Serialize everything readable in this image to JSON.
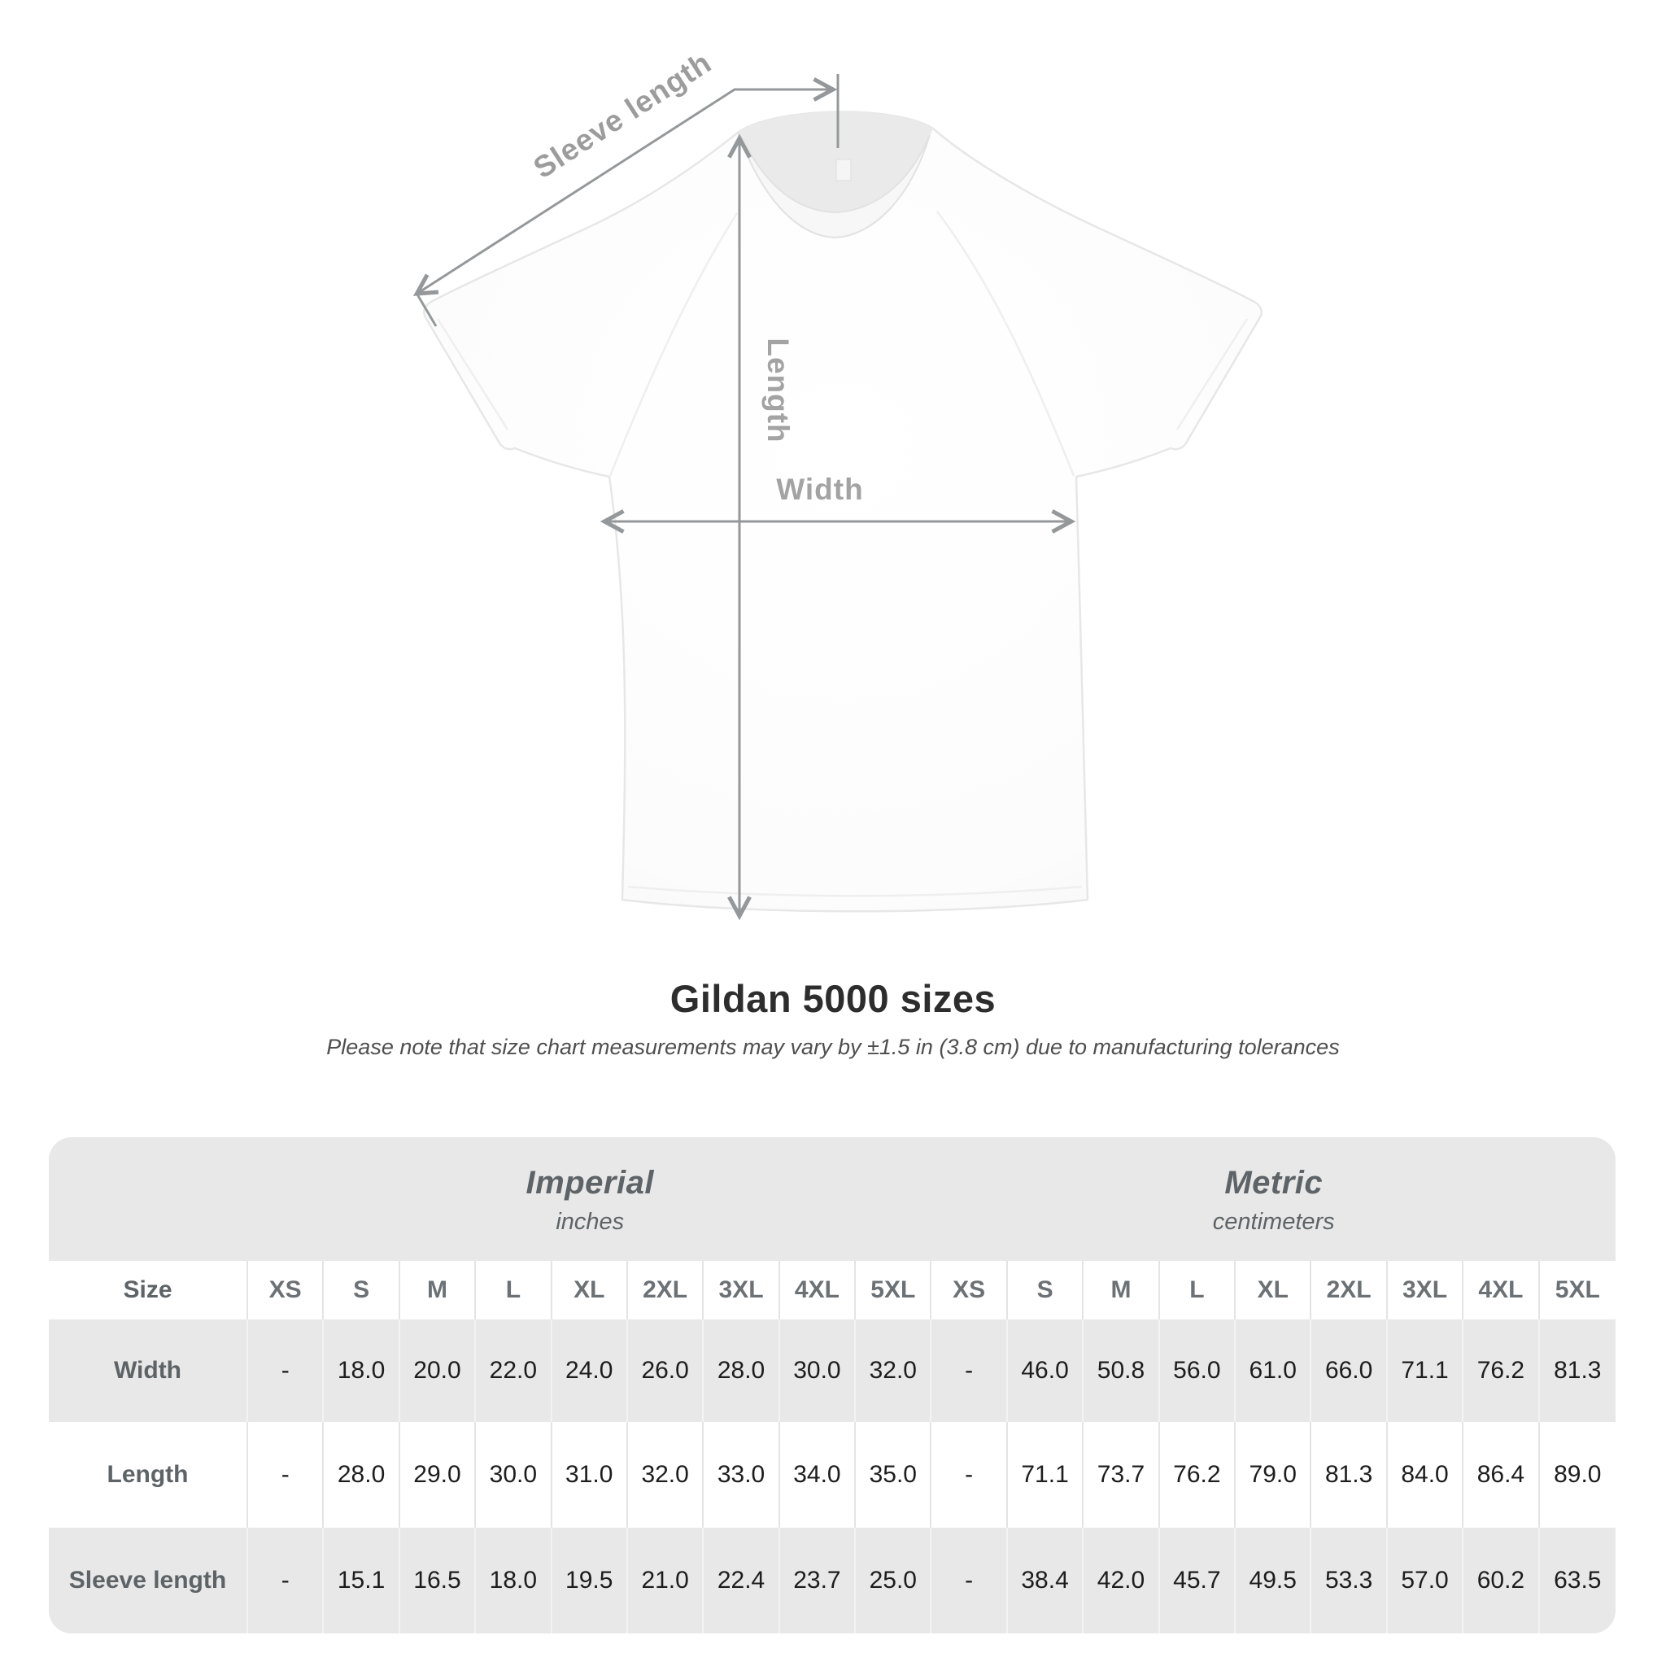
{
  "title": "Gildan 5000 sizes",
  "subtitle": "Please note that size chart measurements may vary by ±1.5 in (3.8 cm) due to manufacturing tolerances",
  "diagram": {
    "labels": {
      "sleeve_length": "Sleeve length",
      "length": "Length",
      "width": "Width"
    },
    "line_color": "#95989a",
    "label_color": "#9c9c9c",
    "shirt_color": "#fdfdfd"
  },
  "table": {
    "size_header": "Size",
    "groups": [
      {
        "label": "Imperial",
        "sublabel": "inches"
      },
      {
        "label": "Metric",
        "sublabel": "centimeters"
      }
    ],
    "sizes": [
      "XS",
      "S",
      "M",
      "L",
      "XL",
      "2XL",
      "3XL",
      "4XL",
      "5XL"
    ],
    "rows": [
      {
        "label": "Width",
        "imperial": [
          "-",
          "18.0",
          "20.0",
          "22.0",
          "24.0",
          "26.0",
          "28.0",
          "30.0",
          "32.0"
        ],
        "metric": [
          "-",
          "46.0",
          "50.8",
          "56.0",
          "61.0",
          "66.0",
          "71.1",
          "76.2",
          "81.3"
        ]
      },
      {
        "label": "Length",
        "imperial": [
          "-",
          "28.0",
          "29.0",
          "30.0",
          "31.0",
          "32.0",
          "33.0",
          "34.0",
          "35.0"
        ],
        "metric": [
          "-",
          "71.1",
          "73.7",
          "76.2",
          "79.0",
          "81.3",
          "84.0",
          "86.4",
          "89.0"
        ]
      },
      {
        "label": "Sleeve length",
        "imperial": [
          "-",
          "15.1",
          "16.5",
          "18.0",
          "19.5",
          "21.0",
          "22.4",
          "23.7",
          "25.0"
        ],
        "metric": [
          "-",
          "38.4",
          "42.0",
          "45.7",
          "49.5",
          "53.3",
          "57.0",
          "60.2",
          "63.5"
        ]
      }
    ]
  },
  "chart_data": {
    "type": "table",
    "title": "Gildan 5000 sizes",
    "note": "Measurements may vary by ±1.5 in (3.8 cm) due to manufacturing tolerances",
    "units": [
      "inches (Imperial)",
      "centimeters (Metric)"
    ],
    "columns": [
      "Size",
      "XS",
      "S",
      "M",
      "L",
      "XL",
      "2XL",
      "3XL",
      "4XL",
      "5XL"
    ],
    "imperial_rows": [
      [
        "Width",
        null,
        18.0,
        20.0,
        22.0,
        24.0,
        26.0,
        28.0,
        30.0,
        32.0
      ],
      [
        "Length",
        null,
        28.0,
        29.0,
        30.0,
        31.0,
        32.0,
        33.0,
        34.0,
        35.0
      ],
      [
        "Sleeve length",
        null,
        15.1,
        16.5,
        18.0,
        19.5,
        21.0,
        22.4,
        23.7,
        25.0
      ]
    ],
    "metric_rows": [
      [
        "Width",
        null,
        46.0,
        50.8,
        56.0,
        61.0,
        66.0,
        71.1,
        76.2,
        81.3
      ],
      [
        "Length",
        null,
        71.1,
        73.7,
        76.2,
        79.0,
        81.3,
        84.0,
        86.4,
        89.0
      ],
      [
        "Sleeve length",
        null,
        38.4,
        42.0,
        45.7,
        49.5,
        53.3,
        57.0,
        60.2,
        63.5
      ]
    ]
  }
}
